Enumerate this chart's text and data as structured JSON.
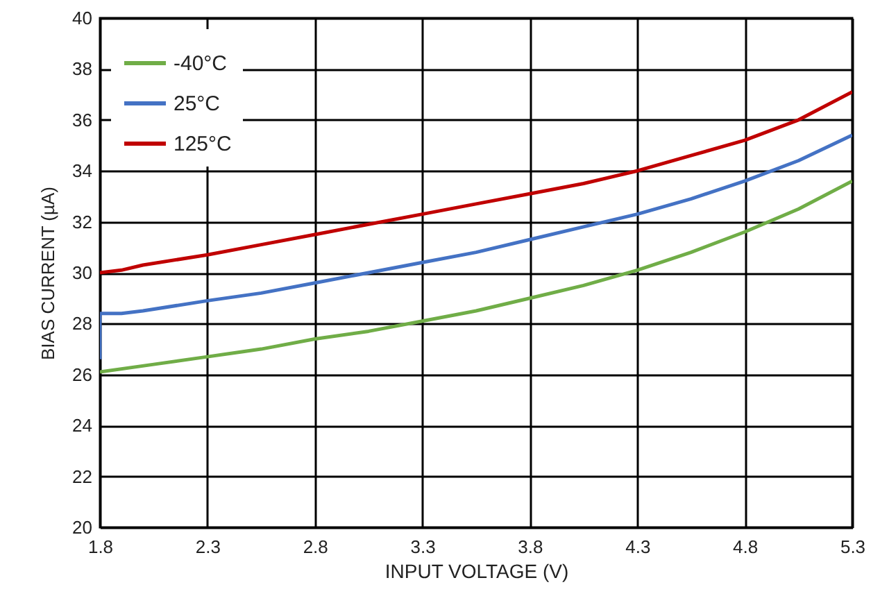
{
  "chart_data": {
    "type": "line",
    "xlabel": "INPUT VOLTAGE (V)",
    "ylabel": "BIAS CURRENT (µA)",
    "xlim": [
      1.8,
      5.3
    ],
    "xticks": [
      1.8,
      2.3,
      2.8,
      3.3,
      3.8,
      4.3,
      4.8,
      5.3
    ],
    "ylim": [
      20,
      40
    ],
    "yticks": [
      20,
      22,
      24,
      26,
      28,
      30,
      32,
      34,
      36,
      38,
      40
    ],
    "grid": true,
    "legend": "top left",
    "line_style": "solid",
    "series": [
      {
        "name": "-40°C",
        "color": "#70ad47",
        "x": [
          1.8,
          2.05,
          2.3,
          2.55,
          2.8,
          3.05,
          3.3,
          3.55,
          3.8,
          4.05,
          4.3,
          4.55,
          4.8,
          5.05,
          5.3
        ],
        "values": [
          26.1,
          26.4,
          26.7,
          27.0,
          27.4,
          27.7,
          28.1,
          28.5,
          29.0,
          29.5,
          30.1,
          30.8,
          31.6,
          32.5,
          33.6
        ]
      },
      {
        "name": "25°C",
        "color": "#4472c4",
        "x": [
          1.8,
          1.8,
          1.9,
          2.0,
          2.3,
          2.55,
          2.8,
          3.05,
          3.3,
          3.55,
          3.8,
          4.05,
          4.3,
          4.55,
          4.8,
          5.05,
          5.3
        ],
        "values": [
          26.6,
          28.4,
          28.4,
          28.5,
          28.9,
          29.2,
          29.6,
          30.0,
          30.4,
          30.8,
          31.3,
          31.8,
          32.3,
          32.9,
          33.6,
          34.4,
          35.4
        ]
      },
      {
        "name": "125°C",
        "color": "#c00000",
        "x": [
          1.8,
          1.9,
          2.0,
          2.3,
          2.55,
          2.8,
          3.05,
          3.3,
          3.55,
          3.8,
          4.05,
          4.3,
          4.55,
          4.8,
          5.05,
          5.3
        ],
        "values": [
          30.0,
          30.1,
          30.3,
          30.7,
          31.1,
          31.5,
          31.9,
          32.3,
          32.7,
          33.1,
          33.5,
          34.0,
          34.6,
          35.2,
          36.0,
          37.1
        ]
      }
    ]
  }
}
